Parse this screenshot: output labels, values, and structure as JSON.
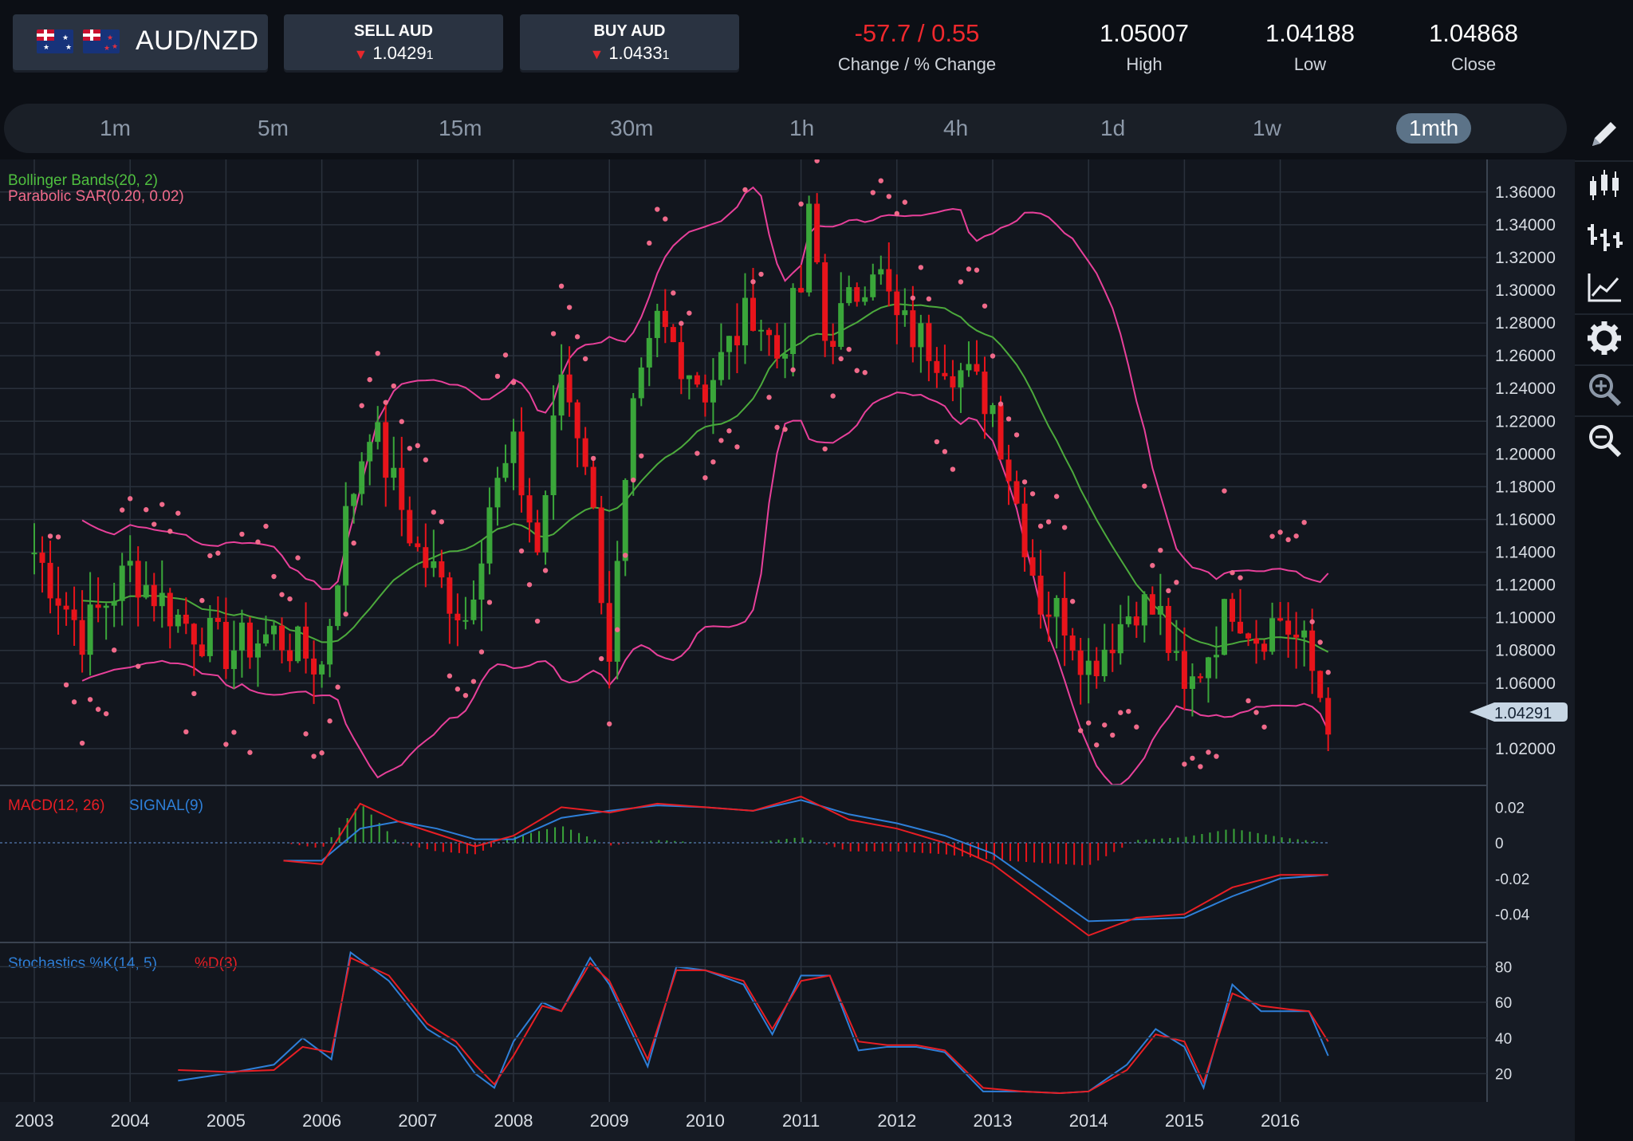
{
  "instrument": {
    "pair": "AUD/NZD",
    "base_flag": "australia-flag",
    "quote_flag": "new-zealand-flag"
  },
  "sell": {
    "label": "SELL AUD",
    "price_main": "1.0429",
    "price_pip": "1",
    "direction": "down"
  },
  "buy": {
    "label": "BUY AUD",
    "price_main": "1.0433",
    "price_pip": "1",
    "direction": "down"
  },
  "stats": {
    "change_value": "-57.7 / 0.55",
    "change_label": "Change / % Change",
    "high_value": "1.05007",
    "high_label": "High",
    "low_value": "1.04188",
    "low_label": "Low",
    "close_value": "1.04868",
    "close_label": "Close"
  },
  "timeframes": [
    {
      "label": "1m",
      "active": false
    },
    {
      "label": "5m",
      "active": false
    },
    {
      "label": "15m",
      "active": false
    },
    {
      "label": "30m",
      "active": false
    },
    {
      "label": "1h",
      "active": false
    },
    {
      "label": "4h",
      "active": false
    },
    {
      "label": "1d",
      "active": false
    },
    {
      "label": "1w",
      "active": false
    },
    {
      "label": "1mth",
      "active": true
    }
  ],
  "tools": [
    "pencil-icon",
    "candlestick-icon",
    "ohlc-bars-icon",
    "line-chart-icon",
    "gear-icon",
    "zoom-in-icon",
    "zoom-out-icon"
  ],
  "colors": {
    "up": "#3aa63a",
    "down": "#e8141b",
    "bollinger": "#e8409a",
    "bollinger_mid": "#4caa3c",
    "sar": "#f06a8a",
    "macd": "#e81e24",
    "signal": "#2e7fd8",
    "stoch_k": "#2e7fd8",
    "stoch_d": "#e81e24"
  },
  "chart_data": {
    "type": "candlestick",
    "x_axis_labels": [
      "2003",
      "2004",
      "2005",
      "2006",
      "2007",
      "2008",
      "2009",
      "2010",
      "2011",
      "2012",
      "2013",
      "2014",
      "2015",
      "2016"
    ],
    "price_axis": {
      "labels": [
        "1.36000",
        "1.34000",
        "1.32000",
        "1.30000",
        "1.28000",
        "1.26000",
        "1.24000",
        "1.22000",
        "1.20000",
        "1.18000",
        "1.16000",
        "1.14000",
        "1.12000",
        "1.10000",
        "1.08000",
        "1.06000",
        "1.02000"
      ],
      "ylim": [
        1.0,
        1.375
      ],
      "current_price": "1.04291"
    },
    "indicators_price": {
      "bollinger_label": "Bollinger Bands(20, 2)",
      "sar_label": "Parabolic SAR(0.20, 0.02)"
    },
    "monthly_close": {
      "x": [
        2003.0,
        2003.5,
        2004.0,
        2004.5,
        2005.0,
        2005.5,
        2006.0,
        2006.25,
        2006.5,
        2007.0,
        2007.5,
        2007.75,
        2008.0,
        2008.25,
        2008.5,
        2008.75,
        2009.0,
        2009.25,
        2009.5,
        2010.0,
        2010.5,
        2010.75,
        2011.0,
        2011.1,
        2011.25,
        2011.5,
        2011.75,
        2012.0,
        2012.5,
        2013.0,
        2013.25,
        2013.5,
        2013.75,
        2014.0,
        2014.25,
        2014.5,
        2014.75,
        2015.0,
        2015.25,
        2015.5,
        2015.75,
        2016.0,
        2016.25,
        2016.5
      ],
      "close": [
        1.14,
        1.09,
        1.13,
        1.1,
        1.08,
        1.09,
        1.07,
        1.16,
        1.22,
        1.14,
        1.1,
        1.17,
        1.2,
        1.14,
        1.25,
        1.2,
        1.08,
        1.22,
        1.28,
        1.24,
        1.29,
        1.26,
        1.3,
        1.35,
        1.27,
        1.29,
        1.32,
        1.28,
        1.26,
        1.23,
        1.17,
        1.11,
        1.1,
        1.07,
        1.09,
        1.11,
        1.1,
        1.05,
        1.08,
        1.11,
        1.09,
        1.1,
        1.08,
        1.04
      ]
    },
    "macd": {
      "label_macd": "MACD(12, 26)",
      "label_signal": "SIGNAL(9)",
      "axis_labels": [
        "0.02",
        "0",
        "-0.02",
        "-0.04"
      ],
      "ylim": [
        -0.055,
        0.03
      ],
      "x": [
        2005.6,
        2006.0,
        2006.4,
        2006.8,
        2007.2,
        2007.6,
        2008.0,
        2008.5,
        2009.0,
        2009.5,
        2010.0,
        2010.5,
        2011.0,
        2011.5,
        2012.0,
        2012.5,
        2013.0,
        2013.5,
        2014.0,
        2014.5,
        2015.0,
        2015.5,
        2016.0,
        2016.5
      ],
      "macd_values": [
        -0.01,
        -0.012,
        0.022,
        0.012,
        0.005,
        -0.002,
        0.004,
        0.02,
        0.017,
        0.022,
        0.02,
        0.018,
        0.026,
        0.013,
        0.008,
        0.0,
        -0.012,
        -0.032,
        -0.052,
        -0.042,
        -0.04,
        -0.025,
        -0.018,
        -0.018
      ],
      "signal_values": [
        -0.01,
        -0.01,
        0.008,
        0.012,
        0.008,
        0.002,
        0.002,
        0.014,
        0.018,
        0.021,
        0.02,
        0.018,
        0.024,
        0.016,
        0.011,
        0.004,
        -0.006,
        -0.025,
        -0.044,
        -0.043,
        -0.042,
        -0.03,
        -0.02,
        -0.018
      ]
    },
    "stochastics": {
      "label_k": "Stochastics %K(14, 5)",
      "label_d": "%D(3)",
      "axis_labels": [
        "80",
        "60",
        "40",
        "20"
      ],
      "ylim": [
        5,
        90
      ],
      "x": [
        2004.5,
        2005.0,
        2005.5,
        2005.8,
        2006.1,
        2006.3,
        2006.7,
        2007.1,
        2007.4,
        2007.6,
        2007.8,
        2008.0,
        2008.3,
        2008.5,
        2008.8,
        2009.0,
        2009.4,
        2009.7,
        2010.0,
        2010.4,
        2010.7,
        2011.0,
        2011.3,
        2011.6,
        2011.9,
        2012.2,
        2012.5,
        2012.9,
        2013.3,
        2013.7,
        2014.0,
        2014.4,
        2014.7,
        2015.0,
        2015.2,
        2015.5,
        2015.8,
        2016.1,
        2016.3,
        2016.5
      ],
      "k_values": [
        16,
        20,
        25,
        40,
        28,
        88,
        72,
        45,
        35,
        20,
        12,
        38,
        60,
        55,
        85,
        70,
        24,
        80,
        78,
        70,
        42,
        75,
        75,
        33,
        35,
        35,
        32,
        10,
        10,
        9,
        10,
        25,
        45,
        35,
        12,
        70,
        55,
        55,
        55,
        30
      ],
      "d_values": [
        22,
        21,
        22,
        35,
        32,
        85,
        75,
        48,
        38,
        25,
        14,
        30,
        58,
        55,
        82,
        72,
        28,
        78,
        78,
        72,
        45,
        72,
        75,
        38,
        36,
        36,
        33,
        12,
        10,
        9,
        10,
        22,
        42,
        38,
        15,
        65,
        58,
        56,
        55,
        38
      ]
    }
  }
}
